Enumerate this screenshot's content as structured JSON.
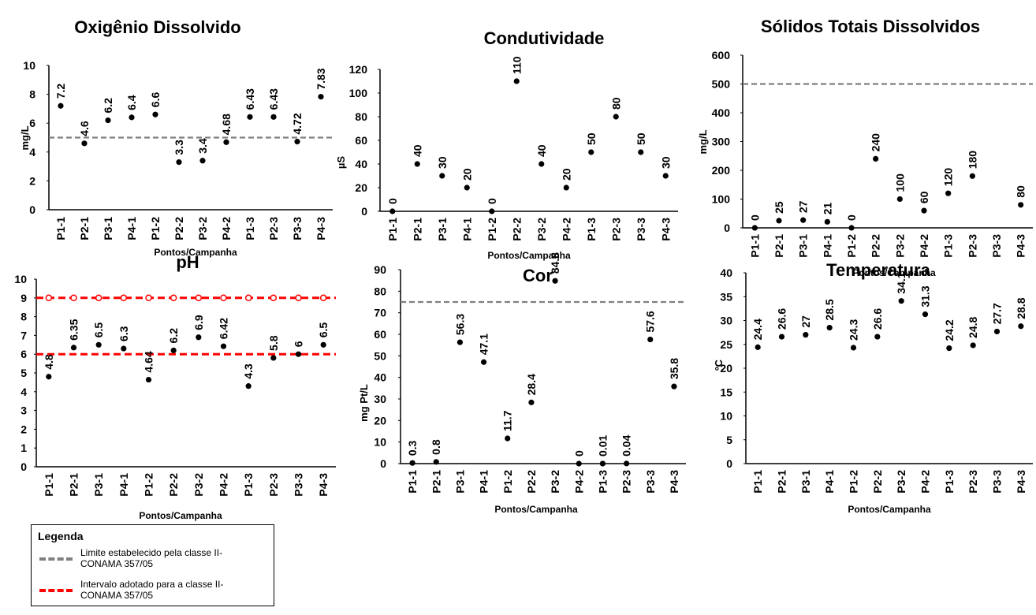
{
  "x_axis_label": "Pontos/Campanha",
  "categories": [
    "P1-1",
    "P2-1",
    "P3-1",
    "P4-1",
    "P1-2",
    "P2-2",
    "P3-2",
    "P4-2",
    "P1-3",
    "P2-3",
    "P3-3",
    "P4-3"
  ],
  "legend": {
    "title": "Legenda",
    "items": [
      {
        "label": "Limite estabelecido pela classe II- CONAMA 357/05",
        "color": "#7f7f7f"
      },
      {
        "label": "Intervalo adotado para a classe II- CONAMA 357/05",
        "color": "#ff0000"
      }
    ]
  },
  "chart_data": [
    {
      "type": "scatter",
      "title": "Oxigênio Dissolvido",
      "ylabel": "mg/L",
      "xlabel": "Pontos/Campanha",
      "ylim": [
        0,
        10
      ],
      "yticks": [
        0,
        2,
        4,
        6,
        8,
        10
      ],
      "values": [
        7.2,
        4.6,
        6.2,
        6.4,
        6.6,
        3.3,
        3.4,
        4.68,
        6.43,
        6.43,
        4.72,
        7.83
      ],
      "labels": [
        "7.2",
        "4.6",
        "6.2",
        "6.4",
        "6.6",
        "3.3",
        "3.4",
        "4.68",
        "6.43",
        "6.43",
        "4.72",
        "7.83"
      ],
      "reference_lines": [
        {
          "value": 5,
          "color": "#7f7f7f"
        }
      ]
    },
    {
      "type": "scatter",
      "title": "Condutividade",
      "ylabel": "µS",
      "xlabel": "Pontos/Campanha",
      "ylim": [
        0,
        120
      ],
      "yticks": [
        0,
        20,
        40,
        60,
        80,
        100,
        120
      ],
      "values": [
        0,
        40,
        30,
        20,
        0,
        110,
        40,
        20,
        50,
        80,
        50,
        30
      ],
      "labels": [
        "0",
        "40",
        "30",
        "20",
        "0",
        "110",
        "40",
        "20",
        "50",
        "80",
        "50",
        "30"
      ],
      "reference_lines": []
    },
    {
      "type": "scatter",
      "title": "Sólidos Totais Dissolvidos",
      "ylabel": "mg/L",
      "xlabel": "Pontos/Campanha",
      "ylim": [
        0,
        600
      ],
      "yticks": [
        0,
        100,
        200,
        300,
        400,
        500,
        600
      ],
      "values": [
        0,
        25,
        27,
        21,
        0,
        240,
        100,
        60,
        120,
        180,
        null,
        80
      ],
      "labels": [
        "0",
        "25",
        "27",
        "21",
        "0",
        "240",
        "100",
        "60",
        "120",
        "180",
        "",
        "80"
      ],
      "reference_lines": [
        {
          "value": 500,
          "color": "#7f7f7f"
        }
      ]
    },
    {
      "type": "scatter",
      "title": "pH",
      "ylabel": "",
      "xlabel": "Pontos/Campanha",
      "ylim": [
        0,
        10
      ],
      "yticks": [
        0,
        1,
        2,
        3,
        4,
        5,
        6,
        7,
        8,
        9,
        10
      ],
      "values": [
        4.8,
        6.35,
        6.5,
        6.3,
        4.64,
        6.2,
        6.9,
        6.42,
        4.3,
        5.8,
        6,
        6.5
      ],
      "labels": [
        "4.8",
        "6.35",
        "6.5",
        "6.3",
        "4.64",
        "6.2",
        "6.9",
        "6.42",
        "4.3",
        "5.8",
        "6",
        "6.5"
      ],
      "reference_lines": [
        {
          "value": 6,
          "color": "#ff0000"
        },
        {
          "value": 9,
          "color": "#ff0000",
          "markers": true
        }
      ]
    },
    {
      "type": "scatter",
      "title": "Cor",
      "ylabel": "mg Pt/L",
      "xlabel": "Pontos/Campanha",
      "ylim": [
        0,
        90
      ],
      "yticks": [
        0,
        10,
        20,
        30,
        40,
        50,
        60,
        70,
        80,
        90
      ],
      "values": [
        0.3,
        0.8,
        56.3,
        47.1,
        11.7,
        28.4,
        84.8,
        0,
        0.01,
        0.04,
        57.6,
        35.8
      ],
      "labels": [
        "0.3",
        "0.8",
        "56.3",
        "47.1",
        "11.7",
        "28.4",
        "84.8",
        "0",
        "0.01",
        "0.04",
        "57.6",
        "35.8"
      ],
      "reference_lines": [
        {
          "value": 75,
          "color": "#7f7f7f"
        }
      ]
    },
    {
      "type": "scatter",
      "title": "Temperatura",
      "ylabel": "ºC",
      "xlabel": "Pontos/Campanha",
      "ylim": [
        0,
        40
      ],
      "yticks": [
        0,
        5,
        10,
        15,
        20,
        25,
        30,
        35,
        40
      ],
      "values": [
        24.4,
        26.6,
        27,
        28.5,
        24.3,
        26.6,
        34.1,
        31.3,
        24.2,
        24.8,
        27.7,
        28.8
      ],
      "labels": [
        "24.4",
        "26.6",
        "27",
        "28.5",
        "24.3",
        "26.6",
        "34.1",
        "31.3",
        "24.2",
        "24.8",
        "27.7",
        "28.8"
      ],
      "reference_lines": []
    }
  ]
}
